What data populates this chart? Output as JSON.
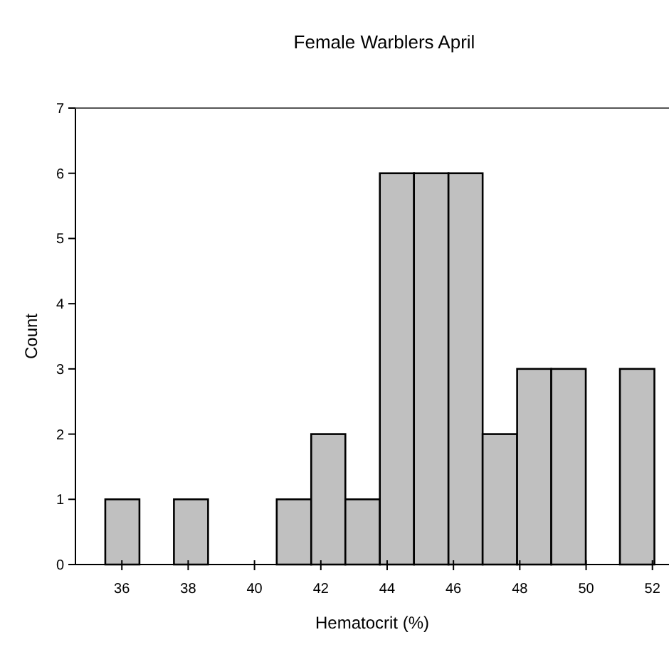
{
  "chart_data": {
    "type": "histogram",
    "title": "Female Warblers April",
    "xlabel": "Hematocrit (%)",
    "ylabel": "Count",
    "bins": [
      35.5,
      36.53,
      37.57,
      38.6,
      39.64,
      40.67,
      41.71,
      42.74,
      43.78,
      44.81,
      45.85,
      46.88,
      47.92,
      48.95,
      49.99,
      51.02,
      52.06
    ],
    "values": [
      1,
      0,
      1,
      0,
      0,
      1,
      2,
      1,
      6,
      6,
      6,
      2,
      3,
      3,
      0,
      3
    ],
    "color": "#c0c0c0",
    "xlim": [
      34.6,
      52.5
    ],
    "xticks": [
      36,
      38,
      40,
      42,
      44,
      46,
      48,
      50,
      52
    ],
    "ylim": [
      0,
      7
    ],
    "yticks": [
      0,
      1,
      2,
      3,
      4,
      5,
      6,
      7
    ],
    "grid": false
  }
}
